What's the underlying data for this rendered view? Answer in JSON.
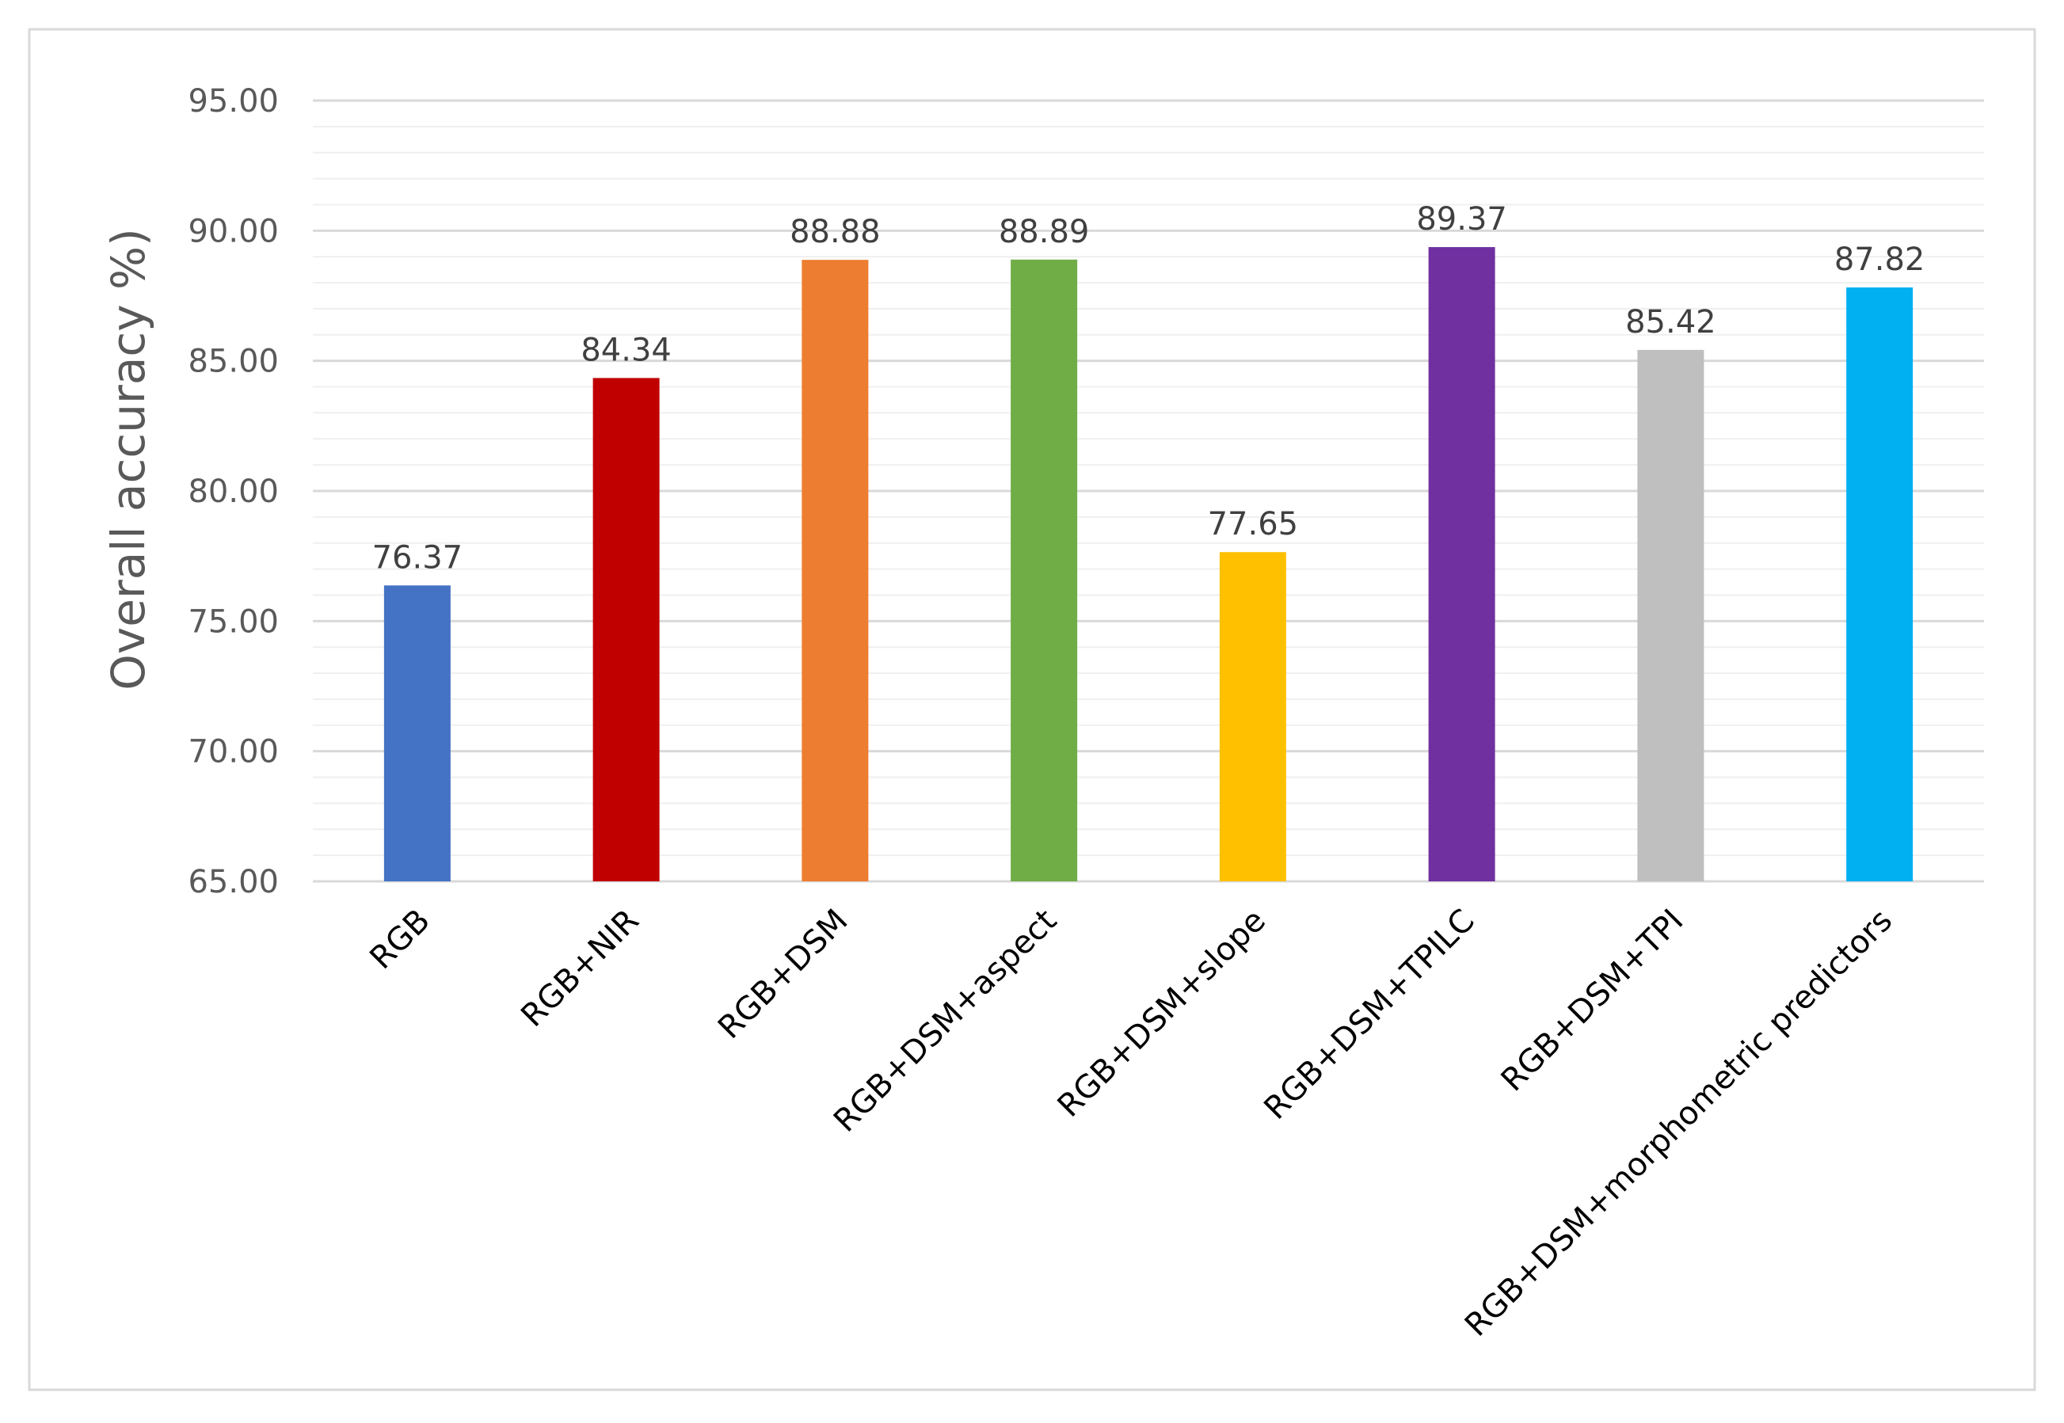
{
  "chart_data": {
    "type": "bar",
    "title": "",
    "xlabel": "",
    "ylabel": "Overall accuracy %)",
    "ylim": [
      65,
      95
    ],
    "ytick_step": 5,
    "ytick_labels": [
      "65.00",
      "70.00",
      "75.00",
      "80.00",
      "85.00",
      "90.00",
      "95.00"
    ],
    "grid": true,
    "minor_grid_step": 1,
    "legend": "none",
    "categories": [
      "RGB",
      "RGB+NIR",
      "RGB+DSM",
      "RGB+DSM+aspect",
      "RGB+DSM+slope",
      "RGB+DSM+TPILC",
      "RGB+DSM+TPI",
      "RGB+DSM+morphometric predictors"
    ],
    "values": [
      76.37,
      84.34,
      88.88,
      88.89,
      77.65,
      89.37,
      85.42,
      87.82
    ],
    "data_labels": [
      "76.37",
      "84.34",
      "88.88",
      "88.89",
      "77.65",
      "89.37",
      "85.42",
      "87.82"
    ],
    "colors": [
      "#4472C4",
      "#C00000",
      "#ED7D31",
      "#70AD47",
      "#FFC000",
      "#7030A0",
      "#BFBFBF",
      "#00B0F0"
    ]
  }
}
